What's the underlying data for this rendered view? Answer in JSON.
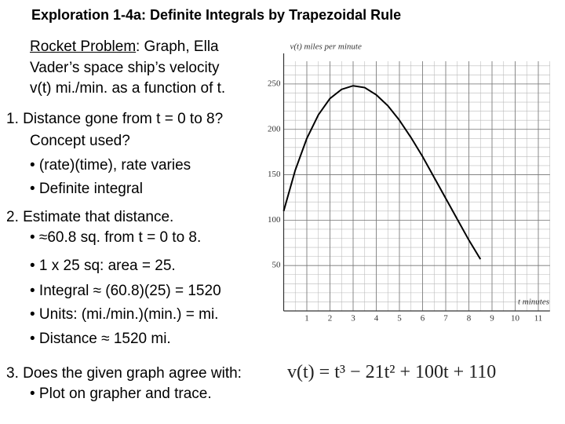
{
  "title": "Exploration 1-4a: Definite Integrals by Trapezoidal Rule",
  "intro": {
    "label": "Rocket Problem",
    "lines": [
      ": Graph, Ella",
      "Vader’s space ship’s velocity",
      "v(t) mi./min. as a function of t."
    ]
  },
  "question1": {
    "heading": "1. Distance gone from t = 0 to 8?",
    "lines": [
      "Concept used?",
      "• (rate)(time), rate varies",
      "• Definite integral"
    ]
  },
  "question2": {
    "heading": "2. Estimate that distance.",
    "lines": [
      "• ≈60.8 sq. from t = 0 to 8.",
      "• 1 x 25 sq: area = 25.",
      "• Integral ≈ (60.8)(25) = 1520",
      "• Units: (mi./min.)(min.) = mi.",
      "• Distance ≈ 1520 mi."
    ]
  },
  "question3": {
    "heading": "3. Does the given graph agree with:",
    "lines": [
      "• Plot on grapher and trace."
    ],
    "equation": "v(t) = t³ − 21t² + 100t + 110"
  },
  "chart_data": {
    "type": "line",
    "y_label": "v(t) miles per minute",
    "x_label": "t minutes",
    "x": [
      0,
      0.5,
      1,
      1.5,
      2,
      2.5,
      3,
      3.5,
      4,
      4.5,
      5,
      5.5,
      6,
      6.5,
      7,
      7.5,
      8,
      8.5
    ],
    "series": [
      {
        "color": "#000000",
        "values": [
          110,
          155,
          190,
          216,
          234,
          244,
          248,
          246,
          238,
          226,
          210,
          191,
          170,
          147,
          124,
          101,
          78,
          57
        ]
      }
    ],
    "xlim": [
      0,
      11.5
    ],
    "ylim": [
      0,
      275
    ],
    "xticks": [
      1,
      2,
      3,
      4,
      5,
      6,
      7,
      8,
      9,
      10,
      11
    ],
    "yticks": [
      50,
      100,
      150,
      200,
      250
    ],
    "grid": true
  }
}
